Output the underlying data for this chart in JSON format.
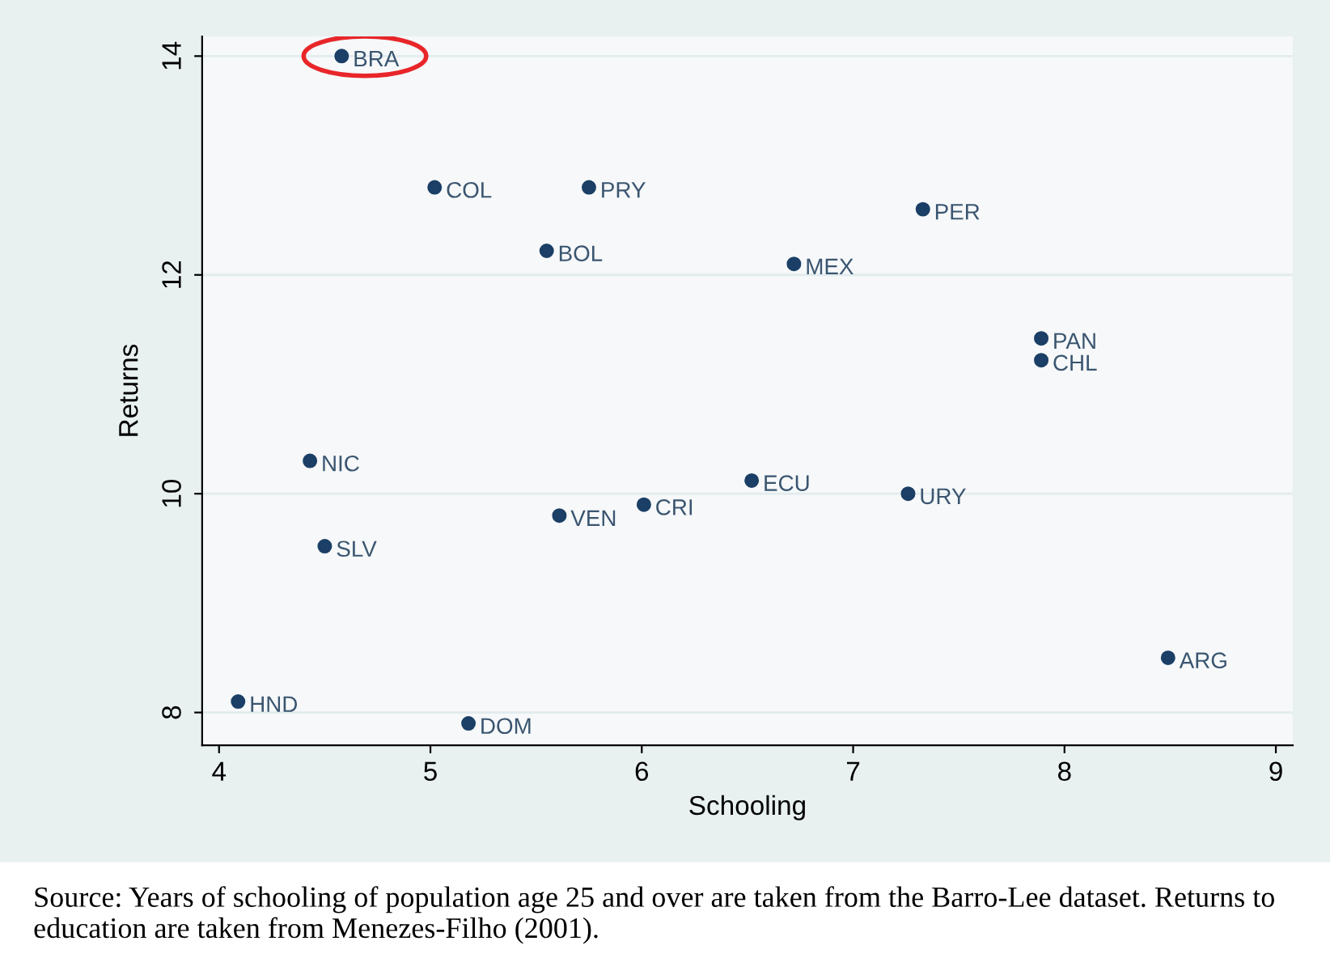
{
  "chart_data": {
    "type": "scatter",
    "xlabel": "Schooling",
    "ylabel": "Returns",
    "x": [
      4.58,
      5.02,
      5.75,
      7.33,
      5.55,
      6.72,
      7.89,
      7.89,
      4.43,
      6.52,
      7.26,
      6.01,
      5.61,
      4.5,
      8.49,
      4.09,
      5.18
    ],
    "series": [
      {
        "color": "#1b3f66",
        "values": [
          14.0,
          12.8,
          12.8,
          12.6,
          12.22,
          12.1,
          11.42,
          11.22,
          10.3,
          10.12,
          10.0,
          9.9,
          9.8,
          9.52,
          8.5,
          8.1,
          7.9
        ]
      }
    ],
    "marker": "circle",
    "grid": "y",
    "xlim": [
      3.92,
      9.08
    ],
    "ylim": [
      7.7,
      14.18
    ],
    "xticks": [
      4,
      5,
      6,
      7,
      8,
      9
    ],
    "yticks": [
      8,
      10,
      12,
      14
    ],
    "annotations": [
      {
        "text": "BRA",
        "x": 4.58,
        "y": 14.0
      },
      {
        "text": "COL",
        "x": 5.02,
        "y": 12.8
      },
      {
        "text": "PRY",
        "x": 5.75,
        "y": 12.8
      },
      {
        "text": "PER",
        "x": 7.33,
        "y": 12.6
      },
      {
        "text": "BOL",
        "x": 5.55,
        "y": 12.22
      },
      {
        "text": "MEX",
        "x": 6.72,
        "y": 12.1
      },
      {
        "text": "PAN",
        "x": 7.89,
        "y": 11.42
      },
      {
        "text": "CHL",
        "x": 7.89,
        "y": 11.22
      },
      {
        "text": "NIC",
        "x": 4.43,
        "y": 10.3
      },
      {
        "text": "ECU",
        "x": 6.52,
        "y": 10.12
      },
      {
        "text": "URY",
        "x": 7.26,
        "y": 10.0
      },
      {
        "text": "CRI",
        "x": 6.01,
        "y": 9.9
      },
      {
        "text": "VEN",
        "x": 5.61,
        "y": 9.8
      },
      {
        "text": "SLV",
        "x": 4.5,
        "y": 9.52
      },
      {
        "text": "ARG",
        "x": 8.49,
        "y": 8.5
      },
      {
        "text": "HND",
        "x": 4.09,
        "y": 8.1
      },
      {
        "text": "DOM",
        "x": 5.18,
        "y": 7.9
      },
      "Source: Years of schooling of population age 25 and over are taken from the Barro-Lee dataset. Returns to education are taken from Menezes-Filho (2001)."
    ]
  }
}
